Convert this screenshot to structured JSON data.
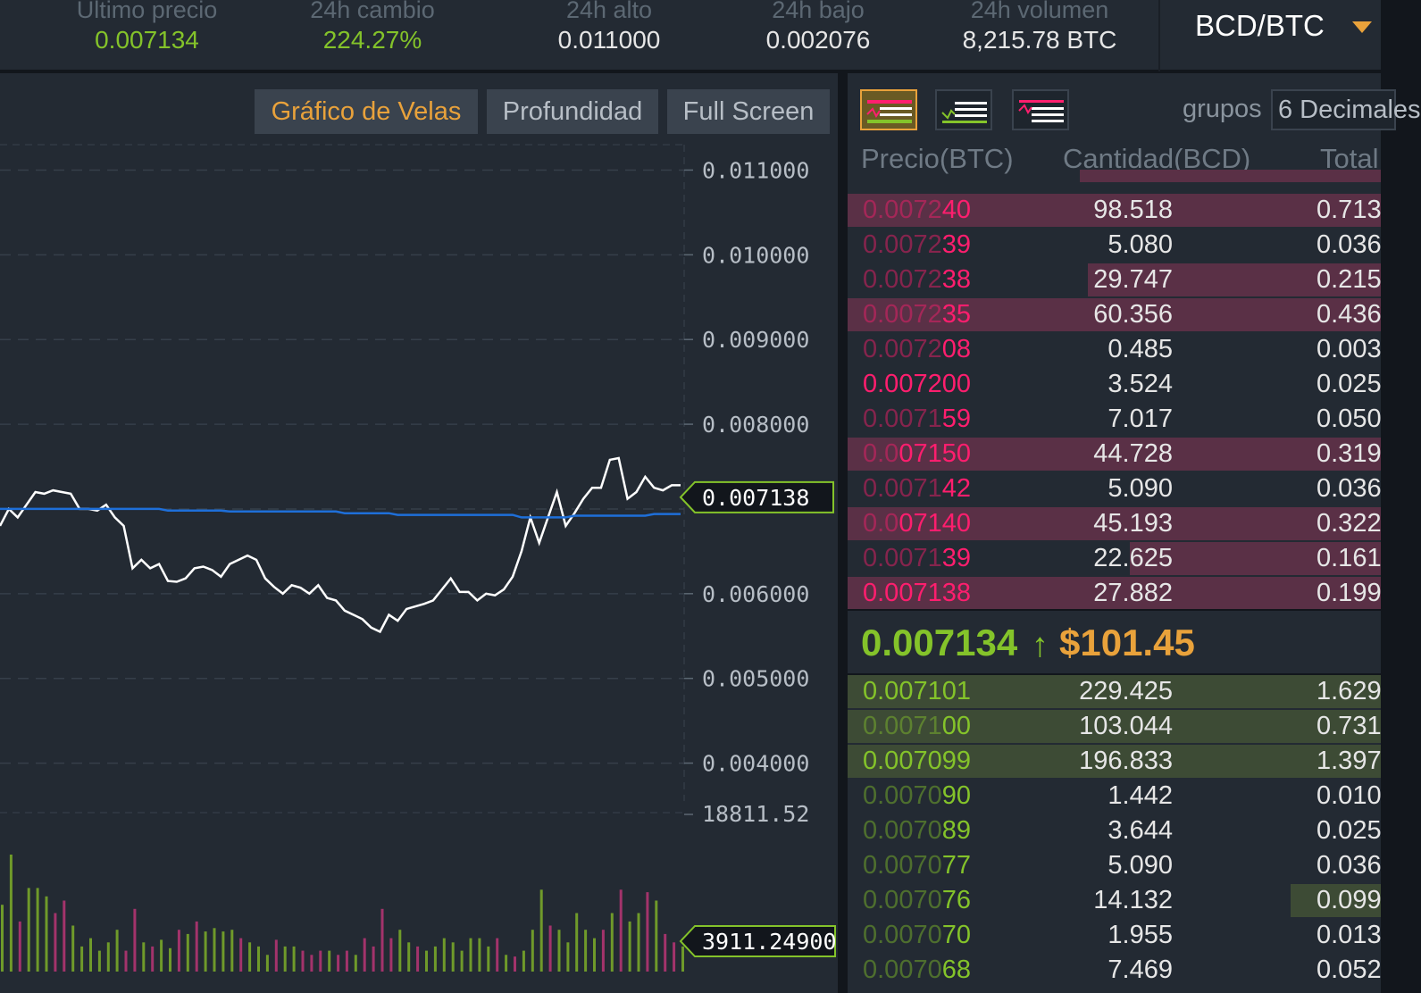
{
  "ticker": {
    "last_price_label": "Ultimo precio",
    "last_price": "0.007134",
    "change_label": "24h cambio",
    "change": "224.27%",
    "high_label": "24h alto",
    "high": "0.011000",
    "low_label": "24h bajo",
    "low": "0.002076",
    "volume_label": "24h volumen",
    "volume": "8,215.78 BTC",
    "pair": "BCD/BTC",
    "pair_icon": "caret-down-icon"
  },
  "chart_tabs": {
    "candles": "Gráfico de Velas",
    "depth": "Profundidad",
    "fullscreen": "Full Screen"
  },
  "chart_data": {
    "type": "line",
    "price_axis_ticks": [
      "0.011000",
      "0.010000",
      "0.009000",
      "0.008000",
      "0.006000",
      "0.005000",
      "0.004000"
    ],
    "current_price_marker": "0.007138",
    "volume_axis_max": "18811.52",
    "current_volume_marker": "3911.24900",
    "ylim": [
      0.0035,
      0.0113
    ],
    "volume_max": 18811.52,
    "price_series": [
      0.0068,
      0.007,
      0.0069,
      0.00705,
      0.0072,
      0.00718,
      0.00722,
      0.0072,
      0.00718,
      0.007,
      0.007,
      0.00698,
      0.00705,
      0.0069,
      0.0068,
      0.0063,
      0.0064,
      0.0063,
      0.00635,
      0.00615,
      0.00614,
      0.00618,
      0.0063,
      0.00632,
      0.00628,
      0.0062,
      0.00635,
      0.0064,
      0.00645,
      0.0064,
      0.00618,
      0.00608,
      0.006,
      0.0061,
      0.00607,
      0.006,
      0.0061,
      0.00595,
      0.00592,
      0.0058,
      0.00575,
      0.0057,
      0.0056,
      0.00555,
      0.00575,
      0.00568,
      0.00582,
      0.00585,
      0.00588,
      0.00592,
      0.00605,
      0.00618,
      0.00602,
      0.00602,
      0.00592,
      0.006,
      0.00598,
      0.00605,
      0.0062,
      0.0065,
      0.0069,
      0.0066,
      0.0069,
      0.0072,
      0.0068,
      0.00695,
      0.00712,
      0.00725,
      0.00725,
      0.00758,
      0.0076,
      0.00712,
      0.0072,
      0.00738,
      0.00725,
      0.00722,
      0.00728,
      0.00728
    ],
    "ma_series": [
      0.007,
      0.007,
      0.007,
      0.007,
      0.007,
      0.007,
      0.007,
      0.007,
      0.007,
      0.007,
      0.007,
      0.007,
      0.007,
      0.007,
      0.007,
      0.007,
      0.007,
      0.007,
      0.007,
      0.00698,
      0.00698,
      0.00698,
      0.00698,
      0.00698,
      0.00698,
      0.00698,
      0.00697,
      0.00697,
      0.00697,
      0.00697,
      0.00697,
      0.00697,
      0.00697,
      0.00697,
      0.00697,
      0.00697,
      0.00697,
      0.00697,
      0.00697,
      0.00695,
      0.00695,
      0.00695,
      0.00695,
      0.00695,
      0.00695,
      0.00693,
      0.00693,
      0.00693,
      0.00693,
      0.00693,
      0.00693,
      0.00693,
      0.00693,
      0.00693,
      0.00693,
      0.00693,
      0.00693,
      0.00693,
      0.00693,
      0.0069,
      0.0069,
      0.0069,
      0.0069,
      0.0069,
      0.0069,
      0.00692,
      0.00692,
      0.00692,
      0.00692,
      0.00692,
      0.00692,
      0.00692,
      0.00692,
      0.00692,
      0.00694,
      0.00694,
      0.00694,
      0.00694
    ],
    "volume_series": [
      {
        "v": 8000,
        "up": true
      },
      {
        "v": 14000,
        "up": true
      },
      {
        "v": 6000,
        "up": false
      },
      {
        "v": 10000,
        "up": true
      },
      {
        "v": 10000,
        "up": true
      },
      {
        "v": 9000,
        "up": true
      },
      {
        "v": 7000,
        "up": false
      },
      {
        "v": 8500,
        "up": false
      },
      {
        "v": 5500,
        "up": true
      },
      {
        "v": 3000,
        "up": true
      },
      {
        "v": 4000,
        "up": true
      },
      {
        "v": 2500,
        "up": true
      },
      {
        "v": 3500,
        "up": true
      },
      {
        "v": 5000,
        "up": true
      },
      {
        "v": 2500,
        "up": false
      },
      {
        "v": 7500,
        "up": false
      },
      {
        "v": 3500,
        "up": true
      },
      {
        "v": 3000,
        "up": false
      },
      {
        "v": 3800,
        "up": true
      },
      {
        "v": 2800,
        "up": true
      },
      {
        "v": 5000,
        "up": false
      },
      {
        "v": 4500,
        "up": true
      },
      {
        "v": 6000,
        "up": false
      },
      {
        "v": 4800,
        "up": true
      },
      {
        "v": 5200,
        "up": true
      },
      {
        "v": 4800,
        "up": true
      },
      {
        "v": 5000,
        "up": true
      },
      {
        "v": 4000,
        "up": false
      },
      {
        "v": 3500,
        "up": true
      },
      {
        "v": 3000,
        "up": true
      },
      {
        "v": 2000,
        "up": true
      },
      {
        "v": 3800,
        "up": false
      },
      {
        "v": 3000,
        "up": true
      },
      {
        "v": 3000,
        "up": true
      },
      {
        "v": 2500,
        "up": false
      },
      {
        "v": 2000,
        "up": false
      },
      {
        "v": 2500,
        "up": false
      },
      {
        "v": 2500,
        "up": true
      },
      {
        "v": 2000,
        "up": false
      },
      {
        "v": 2500,
        "up": false
      },
      {
        "v": 2000,
        "up": true
      },
      {
        "v": 4000,
        "up": false
      },
      {
        "v": 3000,
        "up": false
      },
      {
        "v": 7500,
        "up": false
      },
      {
        "v": 4000,
        "up": false
      },
      {
        "v": 5000,
        "up": true
      },
      {
        "v": 3500,
        "up": true
      },
      {
        "v": 3000,
        "up": false
      },
      {
        "v": 2500,
        "up": true
      },
      {
        "v": 3000,
        "up": true
      },
      {
        "v": 4000,
        "up": true
      },
      {
        "v": 3500,
        "up": true
      },
      {
        "v": 2500,
        "up": true
      },
      {
        "v": 4000,
        "up": true
      },
      {
        "v": 4000,
        "up": true
      },
      {
        "v": 3000,
        "up": true
      },
      {
        "v": 4000,
        "up": false
      },
      {
        "v": 2000,
        "up": true
      },
      {
        "v": 1800,
        "up": false
      },
      {
        "v": 2500,
        "up": true
      },
      {
        "v": 5000,
        "up": true
      },
      {
        "v": 9800,
        "up": true
      },
      {
        "v": 5500,
        "up": false
      },
      {
        "v": 5000,
        "up": true
      },
      {
        "v": 3500,
        "up": true
      },
      {
        "v": 7000,
        "up": true
      },
      {
        "v": 5000,
        "up": true
      },
      {
        "v": 4000,
        "up": true
      },
      {
        "v": 5000,
        "up": false
      },
      {
        "v": 7000,
        "up": true
      },
      {
        "v": 9800,
        "up": false
      },
      {
        "v": 6000,
        "up": true
      },
      {
        "v": 7000,
        "up": true
      },
      {
        "v": 9500,
        "up": false
      },
      {
        "v": 8500,
        "up": true
      },
      {
        "v": 4500,
        "up": false
      },
      {
        "v": 3500,
        "up": false
      },
      {
        "v": 3000,
        "up": true
      }
    ]
  },
  "book": {
    "view_icons": [
      "orderbook-both-icon",
      "orderbook-bids-icon",
      "orderbook-asks-icon"
    ],
    "grupos_label": "grupos",
    "grupos_value": "6 Decimales",
    "headers": {
      "price": "Precio(BTC)",
      "qty": "Cantidad(BCD)",
      "total": "Total"
    },
    "asks": [
      {
        "p1": "0.0072",
        "p2": "40",
        "qty": "98.518",
        "total": "0.713",
        "depth": 1.0
      },
      {
        "p1": "0.0072",
        "p2": "39",
        "qty": "5.080",
        "total": "0.036",
        "depth": 0.0
      },
      {
        "p1": "0.0072",
        "p2": "38",
        "qty": "29.747",
        "total": "0.215",
        "depth": 0.55
      },
      {
        "p1": "0.0072",
        "p2": "35",
        "qty": "60.356",
        "total": "0.436",
        "depth": 1.0
      },
      {
        "p1": "0.0072",
        "p2": "08",
        "qty": "0.485",
        "total": "0.003",
        "depth": 0.0
      },
      {
        "p1": "",
        "p2": "0.007200",
        "qty": "3.524",
        "total": "0.025",
        "depth": 0.0
      },
      {
        "p1": "0.0071",
        "p2": "59",
        "qty": "7.017",
        "total": "0.050",
        "depth": 0.0
      },
      {
        "p1": "0.0",
        "p2": "07150",
        "qty": "44.728",
        "total": "0.319",
        "depth": 1.0
      },
      {
        "p1": "0.0071",
        "p2": "42",
        "qty": "5.090",
        "total": "0.036",
        "depth": 0.0
      },
      {
        "p1": "0.0",
        "p2": "07140",
        "qty": "45.193",
        "total": "0.322",
        "depth": 1.0
      },
      {
        "p1": "0.0071",
        "p2": "39",
        "qty": "22.625",
        "total": "0.161",
        "depth": 0.47
      },
      {
        "p1": "",
        "p2": "0.007138",
        "qty": "27.882",
        "total": "0.199",
        "depth": 1.0
      }
    ],
    "last_price": "0.007134",
    "last_arrow": "↑",
    "last_usd": "$101.45",
    "bids": [
      {
        "p1": "",
        "p2": "0.007101",
        "qty": "229.425",
        "total": "1.629",
        "depth": 1.0
      },
      {
        "p1": "0.0071",
        "p2": "00",
        "qty": "103.044",
        "total": "0.731",
        "depth": 1.0
      },
      {
        "p1": "",
        "p2": "0.007099",
        "qty": "196.833",
        "total": "1.397",
        "depth": 1.0
      },
      {
        "p1": "0.0070",
        "p2": "90",
        "qty": "1.442",
        "total": "0.010",
        "depth": 0.0
      },
      {
        "p1": "0.0070",
        "p2": "89",
        "qty": "3.644",
        "total": "0.025",
        "depth": 0.0
      },
      {
        "p1": "0.0070",
        "p2": "77",
        "qty": "5.090",
        "total": "0.036",
        "depth": 0.0
      },
      {
        "p1": "0.0070",
        "p2": "76",
        "qty": "14.132",
        "total": "0.099",
        "depth": 0.17
      },
      {
        "p1": "0.0070",
        "p2": "70",
        "qty": "1.955",
        "total": "0.013",
        "depth": 0.0
      },
      {
        "p1": "0.0070",
        "p2": "68",
        "qty": "7.469",
        "total": "0.052",
        "depth": 0.0
      }
    ]
  },
  "colors": {
    "up": "#84c32a",
    "down": "#ff1e6e",
    "accent": "#e9a23b",
    "ma_line": "#1e6fd9"
  }
}
